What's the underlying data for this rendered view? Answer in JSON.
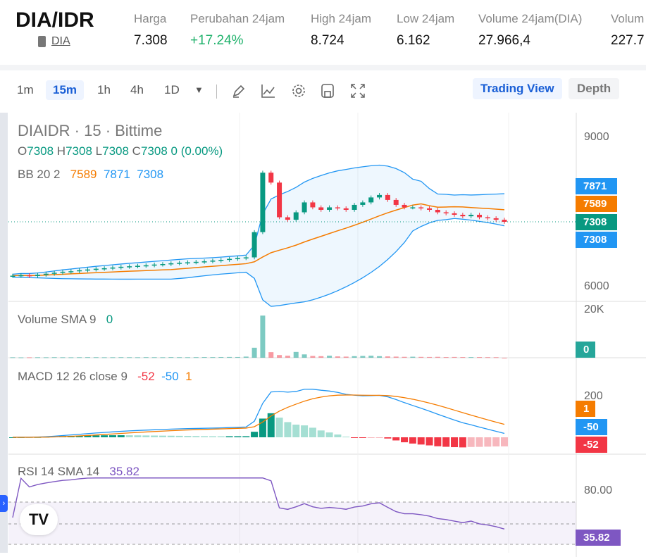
{
  "header": {
    "pair": "DIA/IDR",
    "coin": "DIA",
    "stats": [
      {
        "label": "Harga",
        "value": "7.308"
      },
      {
        "label": "Perubahan 24jam",
        "value": "+17.24%"
      },
      {
        "label": "High 24jam",
        "value": "8.724"
      },
      {
        "label": "Low 24jam",
        "value": "6.162"
      },
      {
        "label": "Volume 24jam(DIA)",
        "value": "27.966,4"
      },
      {
        "label": "Volum",
        "value": "227.7"
      }
    ]
  },
  "toolbar": {
    "timeframes": [
      "1m",
      "15m",
      "1h",
      "4h",
      "1D"
    ],
    "active": "15m",
    "trading_view": "Trading View",
    "depth": "Depth"
  },
  "legend": {
    "title": "DIAIDR · 15 · Bittime",
    "o_label": "O",
    "o": "7308",
    "h_label": "H",
    "h": "7308",
    "l_label": "L",
    "l": "7308",
    "c_label": "C",
    "c": "7308",
    "chg": "0 (0.00%)",
    "bb": "BB 20 2",
    "bb_mid": "7589",
    "bb_up": "7871",
    "bb_low": "7308",
    "vol": "Volume SMA 9",
    "vol_v": "0",
    "macd": "MACD 12 26 close 9",
    "macd_v1": "-52",
    "macd_v2": "-50",
    "macd_v3": "1",
    "rsi": "RSI 14 SMA 14",
    "rsi_v": "35.82"
  },
  "axis": {
    "p9000": "9000",
    "p6000": "6000",
    "v20k": "20K",
    "m200": "200",
    "r80": "80.00"
  },
  "tags": {
    "bb_up": "7871",
    "bb_mid": "7589",
    "price": "7308",
    "bb_low": "7308",
    "vol": "0",
    "macd_sig": "1",
    "macd_line": "-50",
    "macd_hist": "-52",
    "rsi": "35.82"
  },
  "colors": {
    "up": "#26a69a",
    "green": "#089981",
    "down": "#f23645",
    "blue": "#2196f3",
    "orange": "#f57c00",
    "purple": "#7e57c2"
  },
  "chart_data": {
    "type": "candlestick",
    "ylim": [
      6000,
      9000
    ],
    "close": [
      6220,
      6230,
      6215,
      6240,
      6260,
      6280,
      6300,
      6310,
      6330,
      6345,
      6360,
      6370,
      6385,
      6400,
      6410,
      6420,
      6430,
      6445,
      6455,
      6470,
      6480,
      6490,
      6500,
      6510,
      6525,
      6540,
      6560,
      6575,
      6590,
      7100,
      8300,
      8100,
      7400,
      7350,
      7500,
      7700,
      7600,
      7550,
      7600,
      7580,
      7550,
      7650,
      7700,
      7800,
      7850,
      7750,
      7650,
      7600,
      7600,
      7580,
      7550,
      7500,
      7480,
      7450,
      7420,
      7450,
      7400,
      7380,
      7350,
      7308
    ],
    "volume": [
      200,
      150,
      180,
      220,
      200,
      250,
      210,
      190,
      230,
      260,
      240,
      200,
      220,
      250,
      230,
      210,
      260,
      240,
      220,
      280,
      250,
      230,
      260,
      300,
      280,
      320,
      350,
      330,
      500,
      4500,
      19000,
      2500,
      1200,
      900,
      2600,
      1500,
      800,
      700,
      900,
      600,
      500,
      700,
      800,
      900,
      700,
      600,
      500,
      400,
      450,
      380,
      350,
      400,
      300,
      350,
      300,
      280,
      300,
      260,
      240,
      0
    ]
  }
}
